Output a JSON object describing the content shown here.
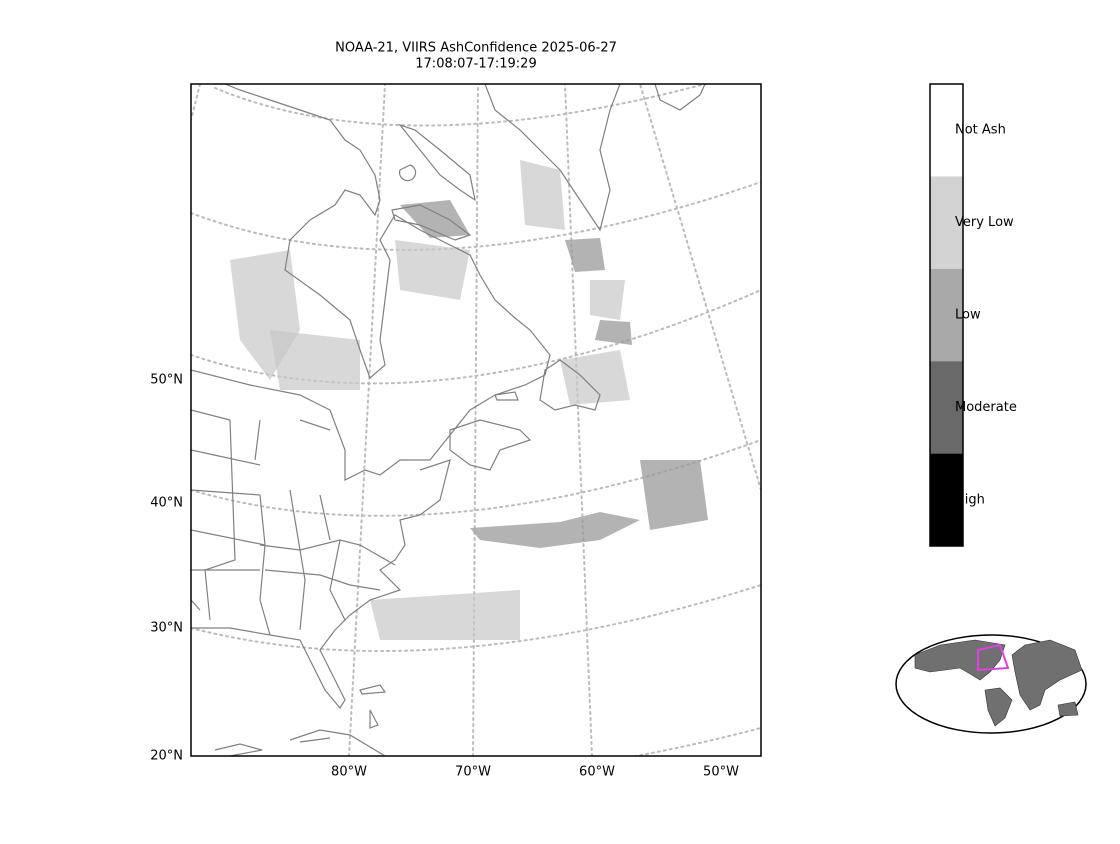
{
  "title": [
    "NOAA-21, VIIRS AshConfidence 2025-06-27",
    "17:08:07-17:19:29"
  ],
  "lat_labels": [
    "50°N",
    "40°N",
    "30°N",
    "20°N"
  ],
  "lon_labels": [
    "80°W",
    "70°W",
    "60°W",
    "50°W"
  ],
  "colorbar": {
    "labels": [
      "Not Ash",
      "Very Low",
      "Low",
      "Moderate",
      "High"
    ],
    "colors": [
      "#ffffff",
      "#d3d3d3",
      "#a9a9a9",
      "#696969",
      "#000000"
    ]
  }
}
